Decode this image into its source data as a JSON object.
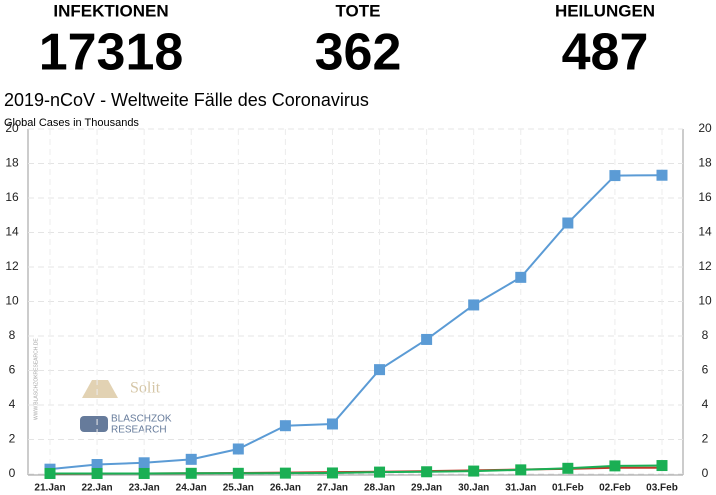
{
  "header": {
    "stats": [
      {
        "label": "INFEKTIONEN",
        "value": 17318
      },
      {
        "label": "TOTE",
        "value": 362
      },
      {
        "label": "HEILUNGEN",
        "value": 487
      }
    ]
  },
  "watermark": {
    "brand": "Solit",
    "logo_line1": "BLASCHZOK",
    "logo_line2": "RESEARCH",
    "url": "WWW.BLASCHZOKRESEARCH.DE"
  },
  "chart_data": {
    "type": "line",
    "title": "2019-nCoV - Weltweite Fälle des Coronavirus",
    "subtitle": "Global Cases in Thousands",
    "categories": [
      "21.Jan",
      "22.Jan",
      "23.Jan",
      "24.Jan",
      "25.Jan",
      "26.Jan",
      "27.Jan",
      "28.Jan",
      "29.Jan",
      "30.Jan",
      "31.Jan",
      "01.Feb",
      "02.Feb",
      "03.Feb"
    ],
    "series": [
      {
        "color": "#5b9bd5",
        "marker": "square",
        "values": [
          0.28,
          0.55,
          0.65,
          0.85,
          1.45,
          2.8,
          2.9,
          6.05,
          7.8,
          9.8,
          11.4,
          14.55,
          17.3,
          17.32
        ]
      },
      {
        "color": "#c0392b",
        "marker": "none",
        "values": [
          0.01,
          0.02,
          0.03,
          0.04,
          0.06,
          0.08,
          0.11,
          0.13,
          0.17,
          0.21,
          0.26,
          0.3,
          0.36,
          0.36
        ]
      },
      {
        "color": "#1aaf54",
        "marker": "square",
        "values": [
          0.03,
          0.03,
          0.03,
          0.04,
          0.04,
          0.05,
          0.06,
          0.11,
          0.13,
          0.17,
          0.24,
          0.33,
          0.47,
          0.49
        ]
      }
    ],
    "ylim": [
      0,
      20
    ],
    "yticks": [
      0,
      2,
      4,
      6,
      8,
      10,
      12,
      14,
      16,
      18,
      20
    ],
    "grid": true
  }
}
